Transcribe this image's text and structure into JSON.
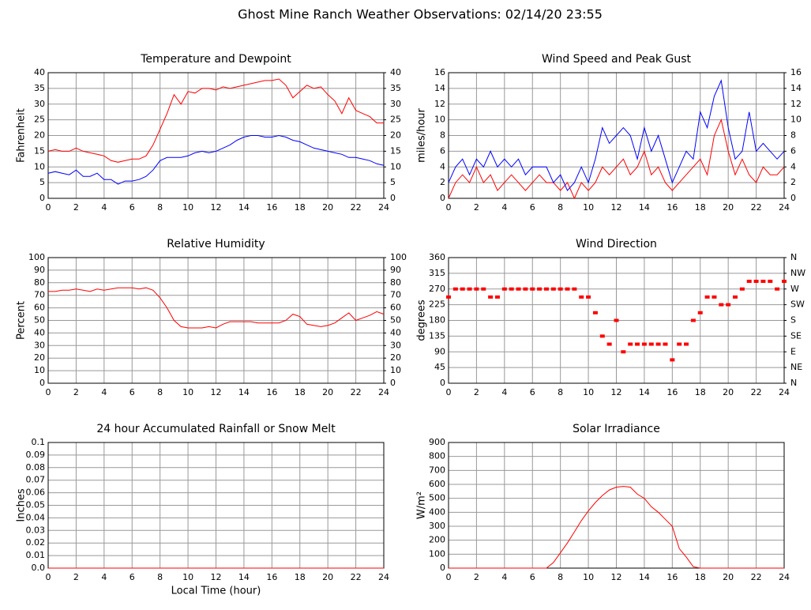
{
  "title": "Ghost Mine Ranch Weather Observations: 02/14/20 23:55",
  "chart_data": [
    {
      "type": "line",
      "title": "Temperature and Dewpoint",
      "ylabel": "Fahrenheit",
      "xlim": [
        0,
        24
      ],
      "xticks": [
        0,
        2,
        4,
        6,
        8,
        10,
        12,
        14,
        16,
        18,
        20,
        22,
        24
      ],
      "ylim": [
        0,
        40
      ],
      "yticks": [
        0,
        5,
        10,
        15,
        20,
        25,
        30,
        35,
        40
      ],
      "y2lim": [
        0,
        40
      ],
      "y2ticks": [
        0,
        5,
        10,
        15,
        20,
        25,
        30,
        35,
        40
      ],
      "grid": true,
      "x": [
        0,
        0.5,
        1,
        1.5,
        2,
        2.5,
        3,
        3.5,
        4,
        4.5,
        5,
        5.5,
        6,
        6.5,
        7,
        7.5,
        8,
        8.5,
        9,
        9.5,
        10,
        10.5,
        11,
        11.5,
        12,
        12.5,
        13,
        13.5,
        14,
        14.5,
        15,
        15.5,
        16,
        16.5,
        17,
        17.5,
        18,
        18.5,
        19,
        19.5,
        20,
        20.5,
        21,
        21.5,
        22,
        22.5,
        23,
        23.5,
        24
      ],
      "series": [
        {
          "color": "#ff0000",
          "values": [
            15,
            15.5,
            15,
            15,
            16,
            15,
            14.5,
            14,
            13.5,
            12,
            11.5,
            12,
            12.5,
            12.5,
            13.5,
            17,
            22,
            27,
            33,
            30,
            34,
            33.5,
            35,
            35,
            34.5,
            35.5,
            35,
            35.5,
            36,
            36.5,
            37,
            37.5,
            37.5,
            38,
            36,
            32,
            34,
            36,
            35,
            35.5,
            33,
            31,
            27,
            32,
            28,
            27,
            26,
            24,
            24
          ]
        },
        {
          "color": "#0000ff",
          "values": [
            8,
            8.5,
            8,
            7.5,
            9,
            7,
            7,
            8,
            6,
            6,
            4.5,
            5.5,
            5.5,
            6,
            7,
            9,
            12,
            13,
            13,
            13,
            13.5,
            14.5,
            15,
            14.5,
            15,
            16,
            17,
            18.5,
            19.5,
            20,
            20,
            19.5,
            19.5,
            20,
            19.5,
            18.5,
            18,
            17,
            16,
            15.5,
            15,
            14.5,
            14,
            13,
            13,
            12.5,
            12,
            11,
            10.5
          ]
        }
      ]
    },
    {
      "type": "line",
      "title": "Wind Speed and Peak Gust",
      "ylabel": "miles/hour",
      "xlim": [
        0,
        24
      ],
      "xticks": [
        0,
        2,
        4,
        6,
        8,
        10,
        12,
        14,
        16,
        18,
        20,
        22,
        24
      ],
      "ylim": [
        0,
        16
      ],
      "yticks": [
        0,
        2,
        4,
        6,
        8,
        10,
        12,
        14,
        16
      ],
      "y2lim": [
        0,
        16
      ],
      "y2ticks": [
        0,
        2,
        4,
        6,
        8,
        10,
        12,
        14,
        16
      ],
      "grid": true,
      "x": [
        0,
        0.5,
        1,
        1.5,
        2,
        2.5,
        3,
        3.5,
        4,
        4.5,
        5,
        5.5,
        6,
        6.5,
        7,
        7.5,
        8,
        8.5,
        9,
        9.5,
        10,
        10.5,
        11,
        11.5,
        12,
        12.5,
        13,
        13.5,
        14,
        14.5,
        15,
        15.5,
        16,
        16.5,
        17,
        17.5,
        18,
        18.5,
        19,
        19.5,
        20,
        20.5,
        21,
        21.5,
        22,
        22.5,
        23,
        23.5,
        24
      ],
      "series": [
        {
          "color": "#ff0000",
          "values": [
            0,
            2,
            3,
            2,
            4,
            2,
            3,
            1,
            2,
            3,
            2,
            1,
            2,
            3,
            2,
            2,
            1,
            2,
            0,
            2,
            1,
            2,
            4,
            3,
            4,
            5,
            3,
            4,
            6,
            3,
            4,
            2,
            1,
            2,
            3,
            4,
            5,
            3,
            8,
            10,
            6,
            3,
            5,
            3,
            2,
            4,
            3,
            3,
            4
          ]
        },
        {
          "color": "#0000ff",
          "values": [
            2,
            4,
            5,
            3,
            5,
            4,
            6,
            4,
            5,
            4,
            5,
            3,
            4,
            4,
            4,
            2,
            3,
            1,
            2,
            4,
            2,
            5,
            9,
            7,
            8,
            9,
            8,
            5,
            9,
            6,
            8,
            5,
            2,
            4,
            6,
            5,
            11,
            9,
            13,
            15,
            9,
            5,
            6,
            11,
            6,
            7,
            6,
            5,
            6
          ]
        }
      ]
    },
    {
      "type": "line",
      "title": "Relative Humidity",
      "ylabel": "Percent",
      "xlim": [
        0,
        24
      ],
      "xticks": [
        0,
        2,
        4,
        6,
        8,
        10,
        12,
        14,
        16,
        18,
        20,
        22,
        24
      ],
      "ylim": [
        0,
        100
      ],
      "yticks": [
        0,
        10,
        20,
        30,
        40,
        50,
        60,
        70,
        80,
        90,
        100
      ],
      "y2lim": [
        0,
        100
      ],
      "y2ticks": [
        0,
        10,
        20,
        30,
        40,
        50,
        60,
        70,
        80,
        90,
        100
      ],
      "grid": true,
      "x": [
        0,
        0.5,
        1,
        1.5,
        2,
        2.5,
        3,
        3.5,
        4,
        4.5,
        5,
        5.5,
        6,
        6.5,
        7,
        7.5,
        8,
        8.5,
        9,
        9.5,
        10,
        10.5,
        11,
        11.5,
        12,
        12.5,
        13,
        13.5,
        14,
        14.5,
        15,
        15.5,
        16,
        16.5,
        17,
        17.5,
        18,
        18.5,
        19,
        19.5,
        20,
        20.5,
        21,
        21.5,
        22,
        22.5,
        23,
        23.5,
        24
      ],
      "series": [
        {
          "color": "#ff0000",
          "values": [
            73,
            73,
            74,
            74,
            75,
            74,
            73,
            75,
            74,
            75,
            76,
            76,
            76,
            75,
            76,
            74,
            68,
            60,
            50,
            45,
            44,
            44,
            44,
            45,
            44,
            47,
            49,
            49,
            49,
            49,
            48,
            48,
            48,
            48,
            50,
            55,
            53,
            47,
            46,
            45,
            46,
            48,
            52,
            56,
            50,
            52,
            54,
            57,
            55
          ]
        }
      ]
    },
    {
      "type": "scatter",
      "title": "Wind Direction",
      "ylabel": "degrees",
      "xlim": [
        0,
        24
      ],
      "xticks": [
        0,
        2,
        4,
        6,
        8,
        10,
        12,
        14,
        16,
        18,
        20,
        22,
        24
      ],
      "ylim": [
        0,
        360
      ],
      "yticks": [
        0,
        45,
        90,
        135,
        180,
        225,
        270,
        315,
        360
      ],
      "y2lim": [
        0,
        360
      ],
      "y2ticks": [
        {
          "value": 0,
          "label": "N"
        },
        {
          "value": 45,
          "label": "NE"
        },
        {
          "value": 90,
          "label": "E"
        },
        {
          "value": 135,
          "label": "SE"
        },
        {
          "value": 180,
          "label": "S"
        },
        {
          "value": 225,
          "label": "SW"
        },
        {
          "value": 270,
          "label": "W"
        },
        {
          "value": 315,
          "label": "NW"
        },
        {
          "value": 360,
          "label": "N"
        }
      ],
      "grid": true,
      "x": [
        0,
        0.5,
        1,
        1.5,
        2,
        2.5,
        3,
        3.5,
        4,
        4.5,
        5,
        5.5,
        6,
        6.5,
        7,
        7.5,
        8,
        8.5,
        9,
        9.5,
        10,
        10.5,
        11,
        11.5,
        12,
        12.5,
        13,
        13.5,
        14,
        14.5,
        15,
        15.5,
        16,
        16.5,
        17,
        17.5,
        18,
        18.5,
        19,
        19.5,
        20,
        20.5,
        21,
        21.5,
        22,
        22.5,
        23,
        23.5,
        24
      ],
      "series": [
        {
          "color": "#ff0000",
          "values": [
            247,
            270,
            270,
            270,
            270,
            270,
            247,
            247,
            270,
            270,
            270,
            270,
            270,
            270,
            270,
            270,
            270,
            270,
            270,
            247,
            247,
            202,
            135,
            112,
            180,
            90,
            112,
            112,
            112,
            112,
            112,
            112,
            67,
            112,
            112,
            180,
            202,
            247,
            247,
            225,
            225,
            247,
            270,
            292,
            292,
            292,
            292,
            270,
            292
          ]
        }
      ]
    },
    {
      "type": "line",
      "title": "24 hour Accumulated Rainfall or Snow Melt",
      "ylabel": "Inches",
      "xlabel": "Local Time (hour)",
      "xlim": [
        0,
        24
      ],
      "xticks": [
        0,
        2,
        4,
        6,
        8,
        10,
        12,
        14,
        16,
        18,
        20,
        22,
        24
      ],
      "ylim": [
        0,
        0.1
      ],
      "yticks": [
        {
          "value": 0,
          "label": "0.0"
        },
        0.01,
        0.02,
        0.03,
        0.04,
        0.05,
        0.06,
        0.07,
        0.08,
        0.09,
        0.1
      ],
      "grid": true,
      "x": [
        0,
        24
      ],
      "series": [
        {
          "color": "#ff0000",
          "values": [
            0,
            0
          ]
        }
      ]
    },
    {
      "type": "line",
      "title": "Solar Irradiance",
      "ylabel": "W/m²",
      "xlim": [
        0,
        24
      ],
      "xticks": [
        0,
        2,
        4,
        6,
        8,
        10,
        12,
        14,
        16,
        18,
        20,
        22,
        24
      ],
      "ylim": [
        0,
        900
      ],
      "yticks": [
        0,
        100,
        200,
        300,
        400,
        500,
        600,
        700,
        800,
        900
      ],
      "grid": true,
      "x": [
        0,
        0.5,
        1,
        1.5,
        2,
        2.5,
        3,
        3.5,
        4,
        4.5,
        5,
        5.5,
        6,
        6.5,
        7,
        7.5,
        8,
        8.5,
        9,
        9.5,
        10,
        10.5,
        11,
        11.5,
        12,
        12.5,
        13,
        13.5,
        14,
        14.5,
        15,
        15.5,
        16,
        16.5,
        17,
        17.5,
        18,
        18.5,
        19,
        19.5,
        20,
        20.5,
        21,
        21.5,
        22,
        22.5,
        23,
        23.5,
        24
      ],
      "series": [
        {
          "color": "#ff0000",
          "values": [
            0,
            0,
            0,
            0,
            0,
            0,
            0,
            0,
            0,
            0,
            0,
            0,
            0,
            0,
            0,
            40,
            110,
            180,
            260,
            340,
            410,
            470,
            520,
            560,
            580,
            585,
            580,
            530,
            500,
            440,
            400,
            350,
            300,
            140,
            80,
            10,
            0,
            0,
            0,
            0,
            0,
            0,
            0,
            0,
            0,
            0,
            0,
            0,
            0
          ]
        }
      ]
    }
  ]
}
